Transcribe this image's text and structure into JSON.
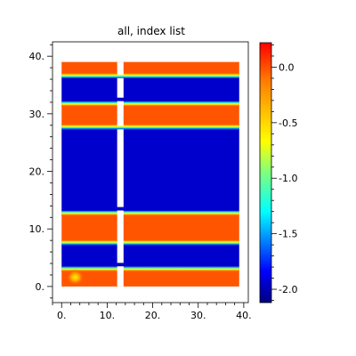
{
  "chart_data": {
    "type": "heatmap",
    "title": "all, index list",
    "xlabel": "",
    "ylabel": "",
    "xlim": [
      -2,
      41
    ],
    "ylim": [
      -2.8,
      42.5
    ],
    "x_ticks": [
      0,
      10,
      20,
      30,
      40
    ],
    "x_tick_labels": [
      "0.",
      "10.",
      "20.",
      "30.",
      "40."
    ],
    "y_ticks": [
      0,
      10,
      20,
      30,
      40
    ],
    "y_tick_labels": [
      "0.",
      "10.",
      "20.",
      "30.",
      "40."
    ],
    "grid": false,
    "data_extent": {
      "x": [
        0,
        39
      ],
      "y": [
        0,
        39
      ]
    },
    "gaps": [
      {
        "x": [
          12,
          14
        ],
        "y": [
          3.5,
          4.0
        ]
      },
      {
        "x": [
          12,
          14
        ],
        "y": [
          13.3,
          13.8
        ]
      },
      {
        "x": [
          12,
          14
        ],
        "y": [
          27.3,
          27.8
        ]
      },
      {
        "x": [
          12,
          14
        ],
        "y": [
          32.2,
          32.7
        ]
      },
      {
        "x": [
          12,
          14
        ],
        "y": [
          36.2,
          36.7
        ]
      }
    ],
    "regions": [
      {
        "name": "hot",
        "y": [
          0,
          3.5
        ],
        "value": 0.1
      },
      {
        "name": "cold",
        "y": [
          3.5,
          7.2
        ],
        "value": -2.1
      },
      {
        "name": "hot",
        "y": [
          7.2,
          13.2
        ],
        "value": 0.1
      },
      {
        "name": "cold",
        "y": [
          13.2,
          27.3
        ],
        "value": -2.1
      },
      {
        "name": "hot",
        "y": [
          27.3,
          32.2
        ],
        "value": 0.1
      },
      {
        "name": "cold",
        "y": [
          32.2,
          36.2
        ],
        "value": -2.1
      },
      {
        "name": "hot",
        "y": [
          36.2,
          39
        ],
        "value": 0.1
      }
    ],
    "colorbar": {
      "range": [
        -2.12,
        0.22
      ],
      "ticks": [
        0.0,
        -0.5,
        -1.0,
        -1.5,
        -2.0
      ],
      "tick_labels": [
        "0.0",
        "-0.5",
        "-1.0",
        "-1.5",
        "-2.0"
      ],
      "colormap": "jet"
    }
  }
}
